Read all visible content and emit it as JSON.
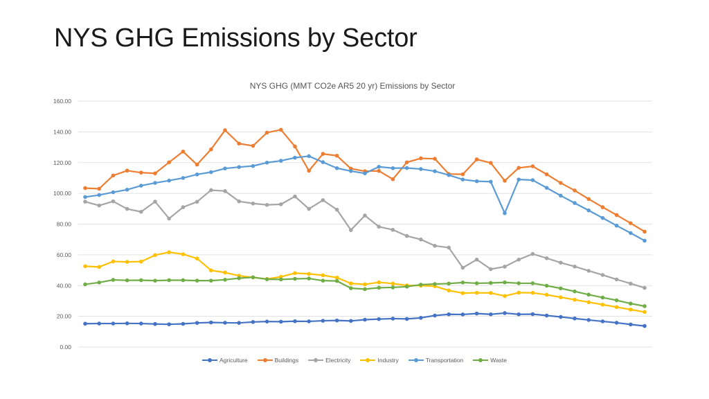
{
  "slide": {
    "title": "NYS GHG Emissions by Sector"
  },
  "chart_data": {
    "type": "line",
    "title": "NYS GHG (MMT CO2e AR5 20 yr) Emissions by Sector",
    "xlabel": "",
    "ylabel": "",
    "ylim": [
      0,
      160
    ],
    "yticks": [
      "0.00",
      "20.00",
      "40.00",
      "60.00",
      "80.00",
      "100.00",
      "120.00",
      "140.00",
      "160.00"
    ],
    "grid": true,
    "legend_position": "bottom",
    "series": [
      {
        "name": "Agriculture",
        "color": "#4472C4",
        "values": [
          15.2,
          15.3,
          15.3,
          15.4,
          15.3,
          15.0,
          14.8,
          15.1,
          15.7,
          16.0,
          15.8,
          15.7,
          16.3,
          16.6,
          16.5,
          16.8,
          16.7,
          17.1,
          17.3,
          17.0,
          17.8,
          18.2,
          18.5,
          18.3,
          19.0,
          20.5,
          21.3,
          21.2,
          21.8,
          21.3,
          22.1,
          21.3,
          21.4,
          20.5,
          19.6,
          18.6,
          17.6,
          16.7,
          15.8,
          14.7,
          13.7
        ]
      },
      {
        "name": "Buildings",
        "color": "#ED7D31",
        "values": [
          103.4,
          103.0,
          111.6,
          114.8,
          113.5,
          113.0,
          120.2,
          127.2,
          118.7,
          128.6,
          141.1,
          132.4,
          130.9,
          139.5,
          141.4,
          130.5,
          114.7,
          125.7,
          124.5,
          116.1,
          114.4,
          114.6,
          109.2,
          120.2,
          122.8,
          122.5,
          112.6,
          112.4,
          122.1,
          119.8,
          108.2,
          116.6,
          117.6,
          112.4,
          106.8,
          101.9,
          96.3,
          91.0,
          85.9,
          80.6,
          75.1
        ]
      },
      {
        "name": "Electricity",
        "color": "#A5A5A5",
        "values": [
          94.6,
          92.1,
          94.8,
          89.9,
          88.0,
          94.6,
          83.6,
          91.0,
          94.5,
          102.1,
          101.5,
          94.8,
          93.4,
          92.5,
          92.9,
          98.0,
          89.9,
          95.6,
          89.4,
          76.1,
          85.6,
          78.3,
          76.3,
          72.3,
          70.0,
          65.9,
          64.7,
          51.6,
          56.9,
          50.7,
          52.3,
          56.9,
          60.6,
          57.8,
          54.9,
          52.4,
          49.6,
          46.9,
          44.0,
          41.3,
          38.5
        ]
      },
      {
        "name": "Industry",
        "color": "#FFC000",
        "values": [
          52.6,
          52.1,
          55.7,
          55.4,
          55.6,
          59.8,
          61.7,
          60.4,
          57.6,
          49.9,
          48.5,
          46.4,
          45.3,
          44.3,
          45.7,
          48.1,
          47.6,
          46.7,
          45.2,
          41.4,
          40.8,
          42.1,
          41.3,
          40.1,
          40.0,
          39.6,
          36.8,
          35.1,
          35.3,
          35.2,
          33.2,
          35.4,
          35.3,
          34.0,
          32.4,
          30.8,
          29.2,
          27.6,
          26.0,
          24.4,
          22.8
        ]
      },
      {
        "name": "Transportation",
        "color": "#5B9BD5",
        "values": [
          97.6,
          98.9,
          100.7,
          102.4,
          105.0,
          106.8,
          108.3,
          110.0,
          112.3,
          113.8,
          116.2,
          117.1,
          117.8,
          120.0,
          121.2,
          123.2,
          124.2,
          120.3,
          116.4,
          114.5,
          113.0,
          117.3,
          116.4,
          116.5,
          115.8,
          114.4,
          111.9,
          109.0,
          107.9,
          107.6,
          87.1,
          109.0,
          108.6,
          103.6,
          98.5,
          93.7,
          88.9,
          84.0,
          79.0,
          74.2,
          69.2
        ]
      },
      {
        "name": "Waste",
        "color": "#70AD47",
        "values": [
          40.8,
          42.0,
          43.7,
          43.4,
          43.5,
          43.2,
          43.5,
          43.5,
          43.2,
          43.2,
          43.8,
          44.8,
          45.4,
          44.1,
          44.0,
          44.4,
          44.6,
          43.2,
          43.0,
          38.3,
          37.7,
          38.6,
          38.8,
          39.3,
          40.6,
          41.0,
          41.3,
          42.0,
          41.5,
          41.7,
          42.1,
          41.5,
          41.5,
          39.9,
          38.2,
          36.2,
          34.1,
          32.2,
          30.4,
          28.3,
          26.6
        ]
      }
    ]
  }
}
